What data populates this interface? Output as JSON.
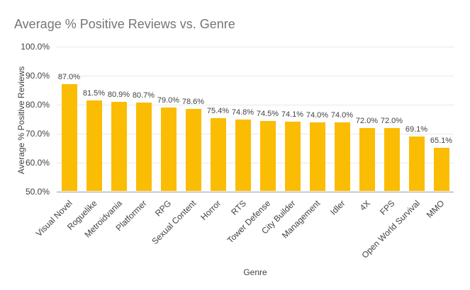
{
  "chart_data": {
    "type": "bar",
    "title": "Average % Positive Reviews vs. Genre",
    "xlabel": "Genre",
    "ylabel": "Average % Positive Reviews",
    "ylim": [
      50,
      100
    ],
    "yticks": [
      50,
      60,
      70,
      80,
      90,
      100
    ],
    "ytick_labels": [
      "50.0%",
      "60.0%",
      "70.0%",
      "80.0%",
      "90.0%",
      "100.0%"
    ],
    "categories": [
      "Visual Novel",
      "Roguelike",
      "Metroidvania",
      "Platformer",
      "RPG",
      "Sexual Content",
      "Horror",
      "RTS",
      "Tower Defense",
      "City Builder",
      "Management",
      "Idler",
      "4X",
      "FPS",
      "Open World Survival",
      "MMO"
    ],
    "values": [
      87.0,
      81.5,
      80.9,
      80.7,
      79.0,
      78.6,
      75.4,
      74.8,
      74.5,
      74.1,
      74.0,
      74.0,
      72.0,
      72.0,
      69.1,
      65.1
    ],
    "value_labels": [
      "87.0%",
      "81.5%",
      "80.9%",
      "80.7%",
      "79.0%",
      "78.6%",
      "75.4%",
      "74.8%",
      "74.5%",
      "74.1%",
      "74.0%",
      "74.0%",
      "72.0%",
      "72.0%",
      "69.1%",
      "65.1%"
    ],
    "bar_color": "#FBBC04",
    "title_color": "#757575",
    "label_color": "#424242",
    "gridline_color": "#e9e9e9",
    "legend": "none",
    "grid": true
  }
}
